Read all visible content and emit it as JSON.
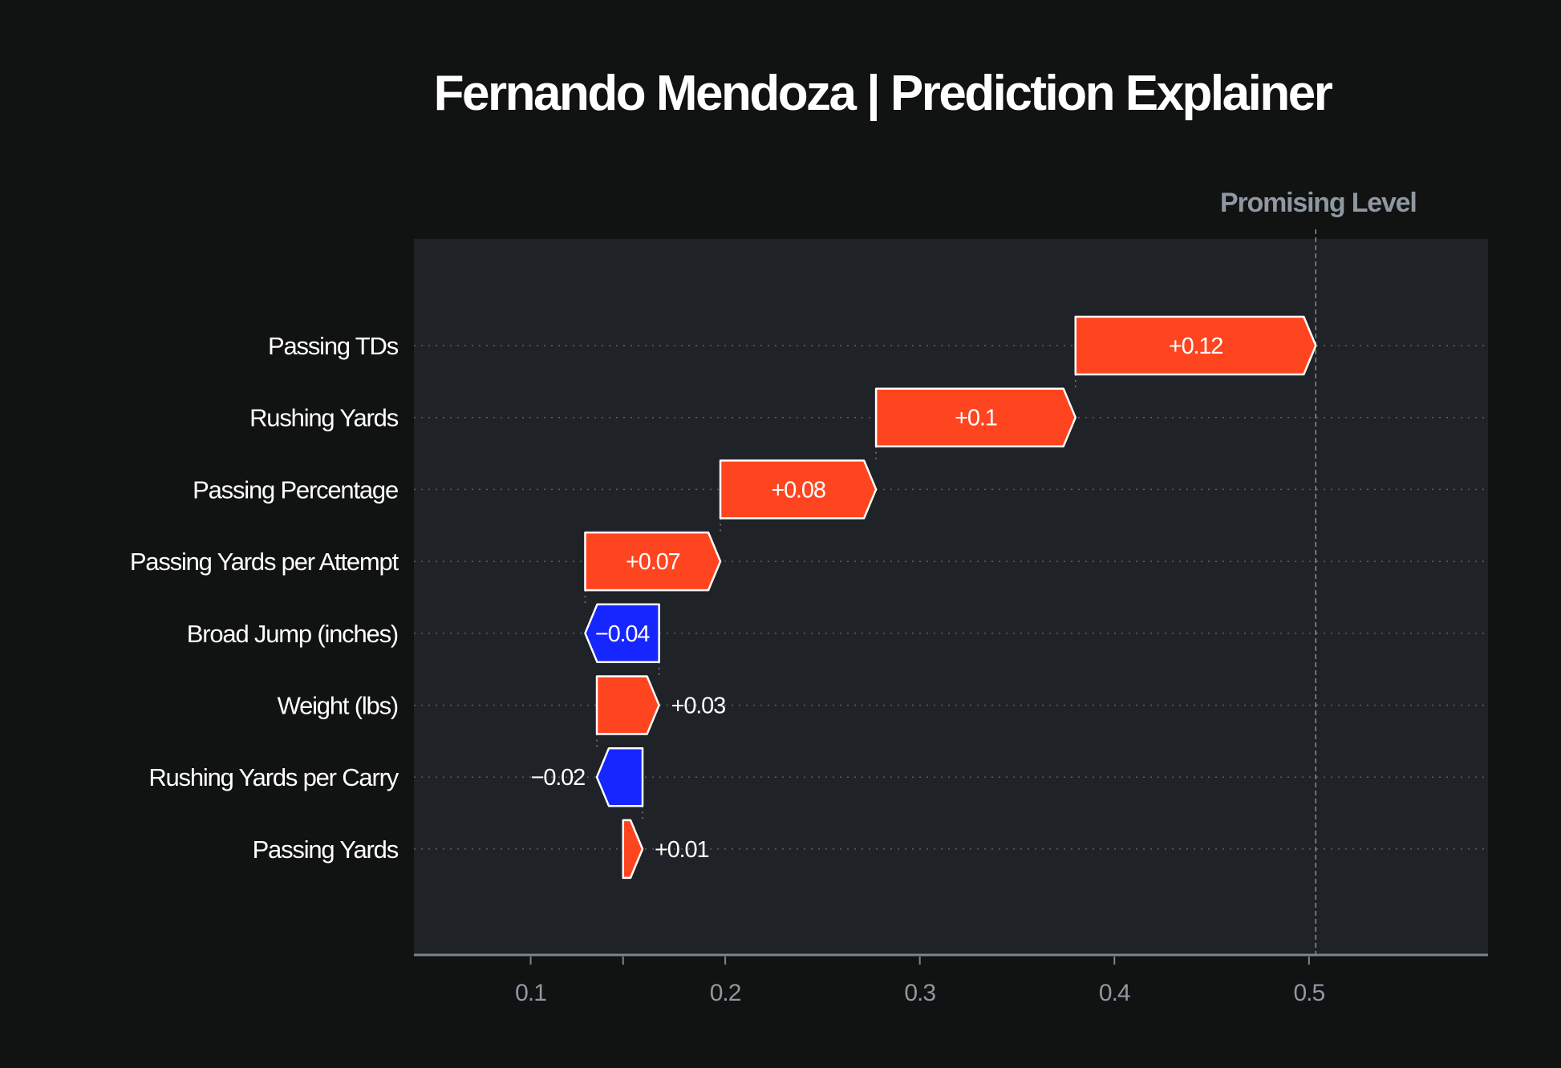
{
  "chart_data": {
    "type": "waterfall",
    "title": "Fernando Mendoza | Prediction Explainer",
    "reference_line": {
      "label": "Promising Level",
      "value": 0.5035
    },
    "base_value": 0.1475,
    "xlim": [
      0.04,
      0.592
    ],
    "xticks": [
      0.1,
      0.2,
      0.3,
      0.4,
      0.5
    ],
    "xtick_labels": [
      "0.1",
      "0.2",
      "0.3",
      "0.4",
      "0.5"
    ],
    "features": [
      {
        "name": "Passing TDs",
        "value": 0.1235,
        "label": "+0.12"
      },
      {
        "name": "Rushing Yards",
        "value": 0.1025,
        "label": "+0.1"
      },
      {
        "name": "Passing Percentage",
        "value": 0.08,
        "label": "+0.08"
      },
      {
        "name": "Passing Yards per Attempt",
        "value": 0.0695,
        "label": "+0.07"
      },
      {
        "name": "Broad Jump (inches)",
        "value": -0.038,
        "label": "−0.04"
      },
      {
        "name": "Weight (lbs)",
        "value": 0.032,
        "label": "+0.03"
      },
      {
        "name": "Rushing Yards per Carry",
        "value": -0.0235,
        "label": "−0.02"
      },
      {
        "name": "Passing Yards",
        "value": 0.01,
        "label": "+0.01"
      }
    ],
    "colors": {
      "positive": "#ff4520",
      "negative": "#1626ff",
      "background": "#111212",
      "plot": "#1f2226"
    }
  }
}
